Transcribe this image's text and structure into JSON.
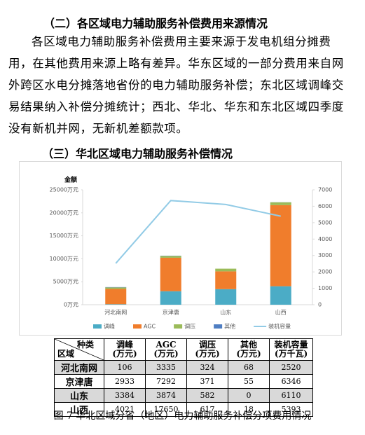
{
  "document": {
    "heading_2": "（二）各区域电力辅助服务补偿费用来源情况",
    "paragraph": "各区域电力辅助服务补偿费用主要来源于发电机组分摊费用，在其他费用来源上略有差异。华东区域的一部分费用来自网外跨区水电分摊落地省份的电力辅助服务补偿；东北区域调峰交易结果纳入补偿分摊统计；西北、华北、华东和东北区域四季度没有新机并网，无新机差额款项。",
    "heading_3": "（三）华北区域电力辅助服务补偿情况",
    "caption": "图 7 华北区域分省（地区）电力辅助服务补偿分项费用情况"
  },
  "chart_data": {
    "type": "bar",
    "stacked": true,
    "y_label": "金额",
    "categories": [
      "河北南网",
      "京津唐",
      "山东",
      "山西"
    ],
    "series": [
      {
        "name": "调峰",
        "color": "#4bacc6",
        "values": [
          106,
          2933,
          3384,
          4021
        ]
      },
      {
        "name": "AGC",
        "color": "#f07d2c",
        "values": [
          3335,
          7292,
          3874,
          17650
        ]
      },
      {
        "name": "调压",
        "color": "#9bbb59",
        "values": [
          324,
          371,
          582,
          617
        ]
      },
      {
        "name": "其他",
        "color": "#4f7ec2",
        "values": [
          68,
          55,
          0,
          18
        ]
      },
      {
        "name": "装机容量",
        "color": "#92cbe6",
        "type": "line",
        "axis": "y2",
        "values": [
          2520,
          6346,
          6110,
          5393
        ]
      }
    ],
    "ylim": [
      0,
      25000
    ],
    "yticks": [
      {
        "value": 0,
        "label": "0万元"
      },
      {
        "value": 5000,
        "label": "5000万元"
      },
      {
        "value": 10000,
        "label": "10000万元"
      },
      {
        "value": 15000,
        "label": "15000万元"
      },
      {
        "value": 20000,
        "label": "20000万元"
      },
      {
        "value": 25000,
        "label": "25000万元"
      }
    ],
    "y2lim": [
      0,
      7000
    ],
    "y2ticks": [
      0,
      1000,
      2000,
      3000,
      4000,
      5000,
      6000,
      7000
    ],
    "legend": "bottom"
  },
  "table": {
    "corner_top": "种类",
    "corner_bottom": "区域",
    "columns": [
      {
        "name": "调峰",
        "unit": "(万元)"
      },
      {
        "name": "AGC",
        "unit": "(万元)"
      },
      {
        "name": "调压",
        "unit": "(万元)"
      },
      {
        "name": "其他",
        "unit": "(万元)"
      },
      {
        "name": "装机容量",
        "unit": "(万千瓦)"
      }
    ]
  }
}
